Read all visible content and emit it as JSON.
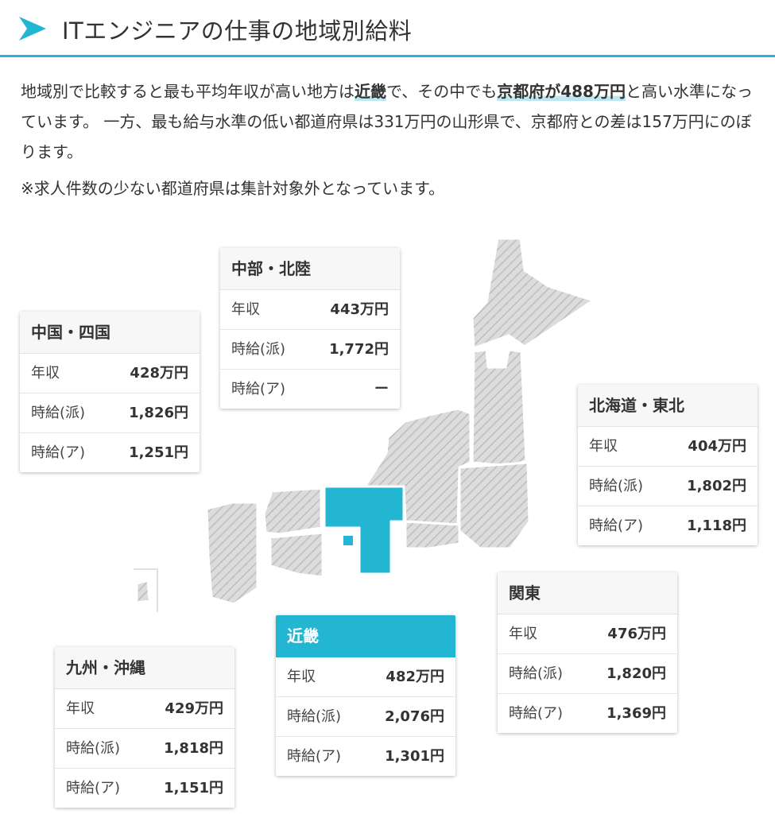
{
  "header": {
    "title": "ITエンジニアの仕事の地域別給料",
    "accent_color": "#23b6d3",
    "icon": "triangle-arrow-icon"
  },
  "intro": {
    "p1": "地域別で比較すると最も平均年収が高い地方は",
    "h1": "近畿",
    "p2": "で、その中でも",
    "h2": "京都府が488万円",
    "p3": "と高い水準になっています。 一方、最も給与水準の低い都道府県は331万円の山形県で、京都府との差は157万円にのぼります。"
  },
  "note": "※求人件数の少ない都道府県は集計対象外となっています。",
  "map": {
    "highlight_region": "近畿",
    "highlight_color": "#23b6d3"
  },
  "regions": {
    "chubu": {
      "name": "中部・北陸",
      "rows": [
        {
          "label": "年収",
          "value": "443万円"
        },
        {
          "label": "時給(派)",
          "value": "1,772円"
        },
        {
          "label": "時給(ア)",
          "value": "ー"
        }
      ]
    },
    "chugoku": {
      "name": "中国・四国",
      "rows": [
        {
          "label": "年収",
          "value": "428万円"
        },
        {
          "label": "時給(派)",
          "value": "1,826円"
        },
        {
          "label": "時給(ア)",
          "value": "1,251円"
        }
      ]
    },
    "hokkaido": {
      "name": "北海道・東北",
      "rows": [
        {
          "label": "年収",
          "value": "404万円"
        },
        {
          "label": "時給(派)",
          "value": "1,802円"
        },
        {
          "label": "時給(ア)",
          "value": "1,118円"
        }
      ]
    },
    "kanto": {
      "name": "関東",
      "rows": [
        {
          "label": "年収",
          "value": "476万円"
        },
        {
          "label": "時給(派)",
          "value": "1,820円"
        },
        {
          "label": "時給(ア)",
          "value": "1,369円"
        }
      ]
    },
    "kinki": {
      "name": "近畿",
      "rows": [
        {
          "label": "年収",
          "value": "482万円"
        },
        {
          "label": "時給(派)",
          "value": "2,076円"
        },
        {
          "label": "時給(ア)",
          "value": "1,301円"
        }
      ]
    },
    "kyushu": {
      "name": "九州・沖縄",
      "rows": [
        {
          "label": "年収",
          "value": "429万円"
        },
        {
          "label": "時給(派)",
          "value": "1,818円"
        },
        {
          "label": "時給(ア)",
          "value": "1,151円"
        }
      ]
    }
  }
}
